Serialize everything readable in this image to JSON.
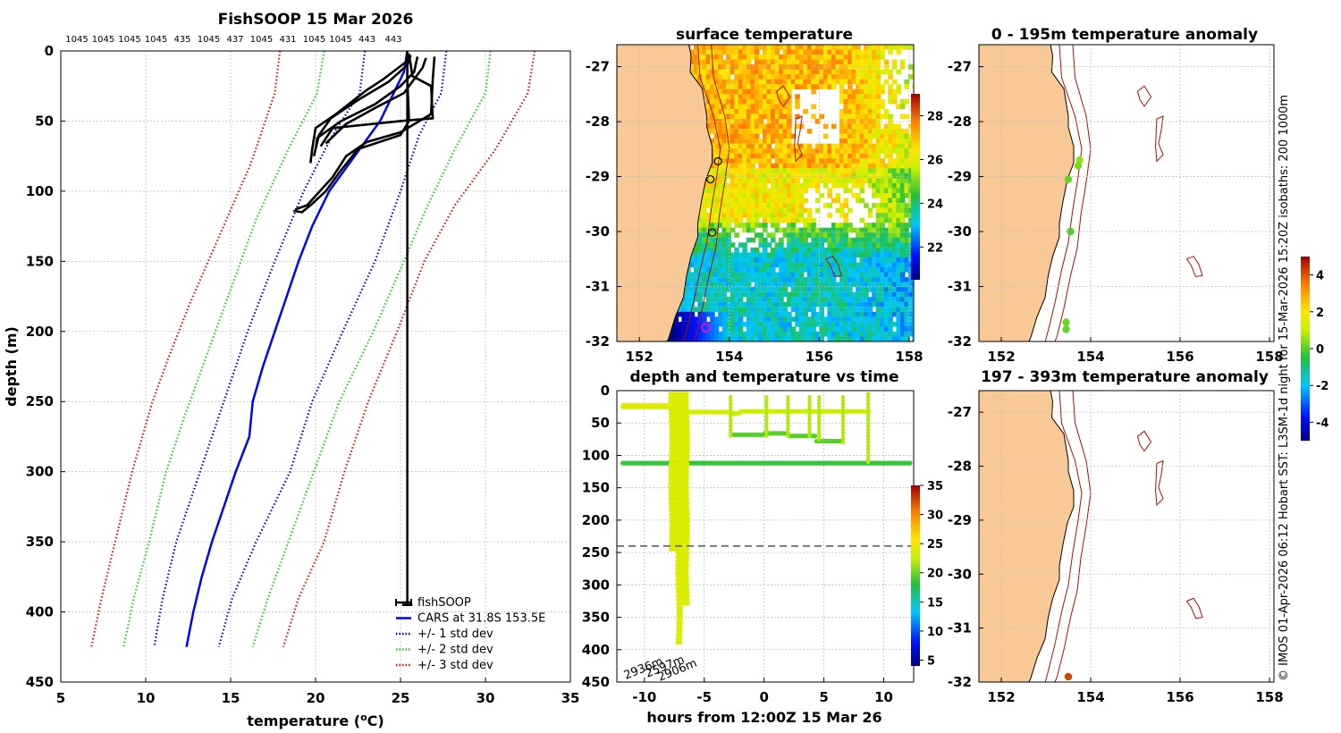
{
  "footer_text": "© IMOS 01-Apr-2026 06:12 Hobart SST: L3SM-1d night for 15-Mar-2026 15:20Z isobaths: 200  1000m",
  "colors": {
    "land": "#f8c896",
    "profile": "#000000",
    "cars": "#0000ff",
    "std1": "#0000cc",
    "std2": "#22cc22",
    "std3": "#dd1100",
    "isobath": "#aa1100"
  },
  "chart_data": [
    {
      "id": "profile",
      "type": "line",
      "title": "FishSOOP 15 Mar 2026",
      "xlabel": "temperature (°C)",
      "ylabel": "depth (m)",
      "xlim": [
        5,
        35
      ],
      "ylim": [
        450,
        0
      ],
      "xticks": [
        "5",
        "10",
        "15",
        "20",
        "25",
        "30",
        "35"
      ],
      "yticks": [
        "0",
        "50",
        "100",
        "150",
        "200",
        "250",
        "300",
        "350",
        "400",
        "450"
      ],
      "top_labels": [
        "1045",
        "1045",
        "1045",
        "1045",
        "435",
        "1045",
        "437",
        "1045",
        "431",
        "1045",
        "1045",
        "443",
        "443"
      ],
      "legend": [
        {
          "label": "fishSOOP",
          "color": "#000000",
          "style": "solid"
        },
        {
          "label": "CARS at 31.8S 153.5E",
          "color": "#0000ff",
          "style": "solid"
        },
        {
          "label": "+/- 1 std dev",
          "color": "#0000cc",
          "style": "dotted"
        },
        {
          "label": "+/- 2 std dev",
          "color": "#22cc22",
          "style": "dotted"
        },
        {
          "label": "+/- 3 std dev",
          "color": "#dd1100",
          "style": "dotted"
        }
      ],
      "cars_mean": [
        [
          25.4,
          0
        ],
        [
          25.2,
          15
        ],
        [
          24.6,
          30
        ],
        [
          23.8,
          50
        ],
        [
          22.0,
          80
        ],
        [
          20.8,
          100
        ],
        [
          19.8,
          125
        ],
        [
          19.0,
          150
        ],
        [
          18.3,
          175
        ],
        [
          17.6,
          200
        ],
        [
          16.9,
          225
        ],
        [
          16.3,
          250
        ],
        [
          16.1,
          275
        ],
        [
          15.3,
          300
        ],
        [
          14.6,
          325
        ],
        [
          13.9,
          350
        ],
        [
          13.3,
          375
        ],
        [
          12.8,
          400
        ],
        [
          12.4,
          425
        ]
      ],
      "std1": {
        "minus": [
          [
            22.9,
            0
          ],
          [
            22.6,
            30
          ],
          [
            21.0,
            60
          ],
          [
            19.3,
            100
          ],
          [
            17.6,
            150
          ],
          [
            16.0,
            200
          ],
          [
            14.6,
            250
          ],
          [
            13.2,
            300
          ],
          [
            11.8,
            350
          ],
          [
            11.0,
            390
          ],
          [
            10.5,
            425
          ]
        ],
        "plus": [
          [
            27.7,
            0
          ],
          [
            27.4,
            30
          ],
          [
            26.1,
            60
          ],
          [
            25.0,
            100
          ],
          [
            23.5,
            150
          ],
          [
            21.6,
            200
          ],
          [
            19.8,
            250
          ],
          [
            18.5,
            300
          ],
          [
            16.5,
            350
          ],
          [
            15.1,
            390
          ],
          [
            14.3,
            425
          ]
        ]
      },
      "std2": {
        "minus": [
          [
            20.5,
            0
          ],
          [
            20.1,
            30
          ],
          [
            18.4,
            70
          ],
          [
            16.5,
            120
          ],
          [
            15.0,
            170
          ],
          [
            13.5,
            220
          ],
          [
            12.3,
            260
          ],
          [
            11.2,
            300
          ],
          [
            10.2,
            350
          ],
          [
            9.3,
            390
          ],
          [
            8.7,
            425
          ]
        ],
        "plus": [
          [
            30.3,
            0
          ],
          [
            30.0,
            30
          ],
          [
            28.2,
            70
          ],
          [
            26.6,
            110
          ],
          [
            25.2,
            150
          ],
          [
            23.4,
            200
          ],
          [
            21.4,
            250
          ],
          [
            19.9,
            300
          ],
          [
            18.4,
            350
          ],
          [
            17.2,
            390
          ],
          [
            16.3,
            425
          ]
        ]
      },
      "std3": {
        "minus": [
          [
            17.9,
            0
          ],
          [
            17.6,
            30
          ],
          [
            16.2,
            80
          ],
          [
            14.4,
            130
          ],
          [
            12.6,
            180
          ],
          [
            11.3,
            220
          ],
          [
            10.4,
            250
          ],
          [
            9.2,
            300
          ],
          [
            8.2,
            350
          ],
          [
            7.4,
            390
          ],
          [
            6.8,
            425
          ]
        ],
        "plus": [
          [
            32.9,
            0
          ],
          [
            32.5,
            30
          ],
          [
            30.6,
            70
          ],
          [
            28.2,
            110
          ],
          [
            26.4,
            150
          ],
          [
            24.8,
            200
          ],
          [
            23.1,
            250
          ],
          [
            21.7,
            300
          ],
          [
            20.5,
            350
          ],
          [
            19.0,
            390
          ],
          [
            18.1,
            425
          ]
        ]
      },
      "fishsoop_traces": [
        [
          [
            25.5,
            2
          ],
          [
            25.3,
            8
          ],
          [
            24.0,
            20
          ],
          [
            23.0,
            28
          ],
          [
            21.2,
            45
          ],
          [
            20.0,
            55
          ],
          [
            19.8,
            70
          ],
          [
            19.7,
            80
          ]
        ],
        [
          [
            25.6,
            3
          ],
          [
            25.4,
            10
          ],
          [
            24.3,
            22
          ],
          [
            22.5,
            35
          ],
          [
            20.9,
            48
          ],
          [
            20.2,
            60
          ],
          [
            19.9,
            75
          ]
        ],
        [
          [
            26.0,
            4
          ],
          [
            25.8,
            15
          ],
          [
            25.0,
            25
          ],
          [
            23.5,
            38
          ],
          [
            21.5,
            50
          ],
          [
            20.1,
            62
          ],
          [
            20.0,
            70
          ]
        ],
        [
          [
            25.5,
            2
          ],
          [
            25.7,
            18
          ],
          [
            26.8,
            25
          ],
          [
            26.9,
            48
          ],
          [
            25.0,
            50
          ],
          [
            21.0,
            55
          ],
          [
            20.3,
            68
          ]
        ],
        [
          [
            26.5,
            5
          ],
          [
            26.3,
            12
          ],
          [
            25.2,
            30
          ],
          [
            23.6,
            40
          ],
          [
            21.8,
            52
          ],
          [
            20.6,
            66
          ]
        ],
        [
          [
            27.0,
            4
          ],
          [
            26.9,
            20
          ],
          [
            26.8,
            45
          ],
          [
            25.0,
            58
          ],
          [
            23.0,
            65
          ],
          [
            21.8,
            75
          ],
          [
            21.0,
            90
          ],
          [
            20.1,
            102
          ],
          [
            19.5,
            110
          ],
          [
            18.8,
            113
          ]
        ],
        [
          [
            25.4,
            2
          ],
          [
            25.4,
            20
          ],
          [
            25.5,
            50
          ],
          [
            25.0,
            60
          ],
          [
            22.5,
            70
          ],
          [
            21.5,
            85
          ],
          [
            20.6,
            100
          ],
          [
            19.8,
            109
          ],
          [
            19.2,
            115
          ],
          [
            18.7,
            114
          ]
        ]
      ],
      "fishsoop_deep": [
        [
          25.4,
          0
        ],
        [
          25.4,
          395
        ]
      ]
    },
    {
      "id": "sst_map",
      "type": "heatmap",
      "title": "surface temperature",
      "xticks": [
        "152",
        "154",
        "156",
        "158"
      ],
      "yticks": [
        "-27",
        "-28",
        "-29",
        "-30",
        "-31",
        "-32"
      ],
      "xlim": [
        151.5,
        158.1
      ],
      "ylim": [
        -32,
        -26.6
      ],
      "colorbar_ticks": [
        "22",
        "24",
        "26",
        "28"
      ],
      "colorbar_range": [
        20.5,
        29
      ],
      "markers_black": [
        [
          153.75,
          -28.72
        ],
        [
          153.58,
          -29.05
        ],
        [
          153.62,
          -30.02
        ]
      ],
      "marker_magenta": [
        153.48,
        -31.75
      ]
    },
    {
      "id": "depth_time",
      "type": "scatter",
      "title": "depth and temperature vs time",
      "xlabel": "hours from 12:00Z 15 Mar 26",
      "xlim": [
        -12.3,
        12.5
      ],
      "ylim": [
        450,
        0
      ],
      "xticks": [
        "-10",
        "-5",
        "0",
        "5",
        "10"
      ],
      "yticks": [
        "0",
        "50",
        "100",
        "150",
        "200",
        "250",
        "300",
        "350",
        "400",
        "450"
      ],
      "colorbar_ticks": [
        "5",
        "10",
        "15",
        "20",
        "25",
        "30",
        "35"
      ],
      "colorbar_range": [
        4,
        35
      ],
      "dashed_depth": 240,
      "depth_labels": [
        "2936m",
        "2597m",
        "2906m"
      ]
    },
    {
      "id": "anom_shallow",
      "type": "scatter",
      "title": "0 - 195m temperature anomaly",
      "xticks": [
        "152",
        "154",
        "156",
        "158"
      ],
      "yticks": [
        "-27",
        "-28",
        "-29",
        "-30",
        "-31",
        "-32"
      ],
      "points": [
        [
          153.75,
          -28.7,
          0.5
        ],
        [
          153.72,
          -28.8,
          0.3
        ],
        [
          153.5,
          -29.05,
          0.1
        ],
        [
          153.55,
          -30.0,
          0.0
        ],
        [
          153.45,
          -31.65,
          0.2
        ],
        [
          153.45,
          -31.78,
          0.1
        ]
      ]
    },
    {
      "id": "anom_deep",
      "type": "scatter",
      "title": "197 - 393m temperature anomaly",
      "xticks": [
        "152",
        "154",
        "156",
        "158"
      ],
      "yticks": [
        "-27",
        "-28",
        "-29",
        "-30",
        "-31",
        "-32"
      ],
      "points": [
        [
          153.5,
          -31.9,
          4.2
        ]
      ]
    },
    {
      "id": "anom_colorbar",
      "type": "heatmap",
      "colorbar_ticks": [
        "-4",
        "-2",
        "0",
        "2",
        "4"
      ],
      "colorbar_range": [
        -5,
        5
      ]
    }
  ]
}
